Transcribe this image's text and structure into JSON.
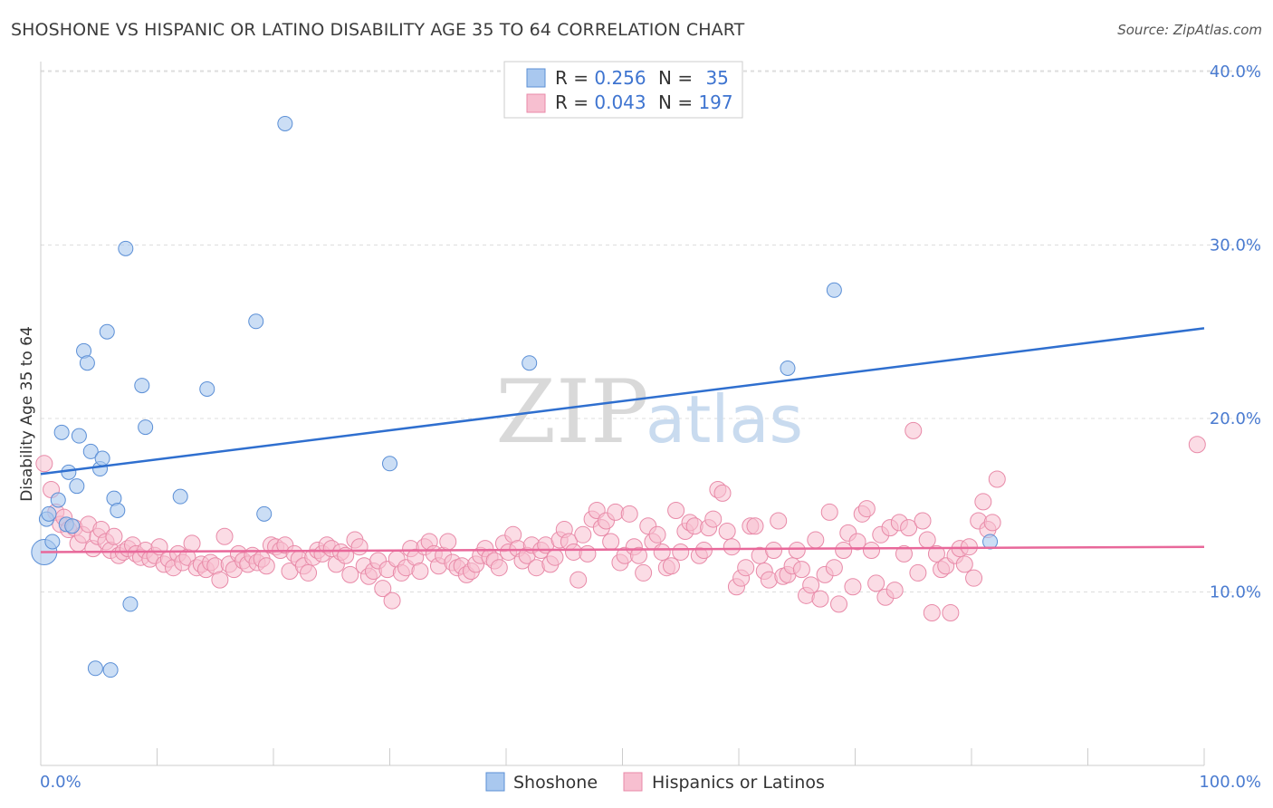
{
  "title": "SHOSHONE VS HISPANIC OR LATINO DISABILITY AGE 35 TO 64 CORRELATION CHART",
  "source": "Source: ZipAtlas.com",
  "watermark": {
    "zip": "ZIP",
    "atlas": "atlas"
  },
  "colors": {
    "shoshone_fill": "#a9c8ef",
    "shoshone_stroke": "#5b8fd6",
    "shoshone_line": "#2f6fcf",
    "hispanic_fill": "#f7bfd0",
    "hispanic_stroke": "#e88aa8",
    "hispanic_line": "#e8689a",
    "accent_text": "#3e74d0"
  },
  "legend": {
    "rows": [
      {
        "r_label": "R = ",
        "r_value": "0.256",
        "n_label": "N = ",
        "n_value": "35"
      },
      {
        "r_label": "R = ",
        "r_value": "0.043",
        "n_label": "N = ",
        "n_value": "197"
      }
    ]
  },
  "chart_data": {
    "type": "scatter",
    "title": "SHOSHONE VS HISPANIC OR LATINO DISABILITY AGE 35 TO 64 CORRELATION CHART",
    "xlabel": "",
    "ylabel": "Disability Age 35 to 64",
    "xlim": [
      0,
      100
    ],
    "ylim": [
      0,
      42
    ],
    "x_tick_labels": [
      "0.0%",
      "100.0%"
    ],
    "y_ticks": [
      10,
      20,
      30,
      40
    ],
    "y_tick_labels": [
      "10.0%",
      "20.0%",
      "30.0%",
      "40.0%"
    ],
    "grid": true,
    "legend_position": "top-center",
    "series": [
      {
        "name": "Shoshone",
        "r": 0.256,
        "n": 35,
        "trend": {
          "x": [
            0,
            100
          ],
          "y": [
            16.8,
            25.2
          ]
        },
        "points": [
          [
            0.3,
            12.3
          ],
          [
            0.5,
            14.2
          ],
          [
            0.7,
            14.5
          ],
          [
            1.0,
            12.9
          ],
          [
            1.5,
            15.3
          ],
          [
            1.8,
            19.2
          ],
          [
            2.2,
            13.9
          ],
          [
            2.4,
            16.9
          ],
          [
            2.7,
            13.8
          ],
          [
            3.1,
            16.1
          ],
          [
            3.3,
            19.0
          ],
          [
            3.7,
            23.9
          ],
          [
            4.0,
            23.2
          ],
          [
            4.3,
            18.1
          ],
          [
            4.7,
            5.6
          ],
          [
            5.1,
            17.1
          ],
          [
            5.3,
            17.7
          ],
          [
            5.7,
            25.0
          ],
          [
            6.0,
            5.5
          ],
          [
            6.3,
            15.4
          ],
          [
            6.6,
            14.7
          ],
          [
            7.3,
            29.8
          ],
          [
            7.7,
            9.3
          ],
          [
            8.7,
            21.9
          ],
          [
            9.0,
            19.5
          ],
          [
            12.0,
            15.5
          ],
          [
            14.3,
            21.7
          ],
          [
            18.5,
            25.6
          ],
          [
            19.2,
            14.5
          ],
          [
            21.0,
            37.0
          ],
          [
            30.0,
            17.4
          ],
          [
            42.0,
            23.2
          ],
          [
            64.2,
            22.9
          ],
          [
            68.2,
            27.4
          ],
          [
            81.6,
            12.9
          ]
        ]
      },
      {
        "name": "Hispanics or Latinos",
        "r": 0.043,
        "n": 197,
        "trend": {
          "x": [
            0,
            100
          ],
          "y": [
            12.3,
            12.6
          ]
        },
        "points": [
          [
            0.3,
            17.4
          ],
          [
            0.9,
            15.9
          ],
          [
            1.3,
            14.6
          ],
          [
            1.7,
            13.9
          ],
          [
            2.0,
            14.3
          ],
          [
            2.4,
            13.6
          ],
          [
            2.9,
            13.7
          ],
          [
            3.2,
            12.8
          ],
          [
            3.6,
            13.3
          ],
          [
            4.1,
            13.9
          ],
          [
            4.5,
            12.5
          ],
          [
            4.9,
            13.2
          ],
          [
            5.2,
            13.6
          ],
          [
            5.6,
            12.9
          ],
          [
            6.0,
            12.4
          ],
          [
            6.3,
            13.2
          ],
          [
            6.7,
            12.1
          ],
          [
            7.1,
            12.3
          ],
          [
            7.5,
            12.5
          ],
          [
            7.9,
            12.7
          ],
          [
            8.2,
            12.2
          ],
          [
            8.6,
            12.0
          ],
          [
            9.0,
            12.4
          ],
          [
            9.4,
            11.9
          ],
          [
            9.8,
            12.1
          ],
          [
            10.2,
            12.6
          ],
          [
            10.6,
            11.6
          ],
          [
            11.0,
            11.9
          ],
          [
            11.4,
            11.4
          ],
          [
            11.8,
            12.2
          ],
          [
            12.2,
            11.7
          ],
          [
            12.6,
            12.0
          ],
          [
            13.0,
            12.8
          ],
          [
            13.4,
            11.4
          ],
          [
            13.8,
            11.6
          ],
          [
            14.2,
            11.3
          ],
          [
            14.6,
            11.7
          ],
          [
            15.0,
            11.5
          ],
          [
            15.4,
            10.7
          ],
          [
            15.8,
            13.2
          ],
          [
            16.2,
            11.6
          ],
          [
            16.6,
            11.3
          ],
          [
            17.0,
            12.2
          ],
          [
            17.4,
            11.8
          ],
          [
            17.8,
            11.6
          ],
          [
            18.2,
            12.1
          ],
          [
            18.6,
            11.7
          ],
          [
            19.0,
            11.9
          ],
          [
            19.4,
            11.5
          ],
          [
            19.8,
            12.7
          ],
          [
            20.2,
            12.6
          ],
          [
            20.6,
            12.4
          ],
          [
            21.0,
            12.7
          ],
          [
            21.4,
            11.2
          ],
          [
            21.8,
            12.2
          ],
          [
            22.2,
            11.9
          ],
          [
            22.6,
            11.5
          ],
          [
            23.0,
            11.1
          ],
          [
            23.4,
            12.0
          ],
          [
            23.8,
            12.4
          ],
          [
            24.2,
            12.2
          ],
          [
            24.6,
            12.7
          ],
          [
            25.0,
            12.5
          ],
          [
            25.4,
            11.6
          ],
          [
            25.8,
            12.3
          ],
          [
            26.2,
            12.1
          ],
          [
            26.6,
            11.0
          ],
          [
            27.0,
            13.0
          ],
          [
            27.4,
            12.6
          ],
          [
            27.8,
            11.5
          ],
          [
            28.2,
            10.9
          ],
          [
            28.6,
            11.2
          ],
          [
            29.0,
            11.8
          ],
          [
            29.4,
            10.2
          ],
          [
            29.8,
            11.3
          ],
          [
            30.2,
            9.5
          ],
          [
            30.6,
            11.9
          ],
          [
            31.0,
            11.1
          ],
          [
            31.4,
            11.4
          ],
          [
            31.8,
            12.5
          ],
          [
            32.2,
            12.0
          ],
          [
            32.6,
            11.2
          ],
          [
            33.0,
            12.6
          ],
          [
            33.4,
            12.9
          ],
          [
            33.8,
            12.2
          ],
          [
            34.2,
            11.5
          ],
          [
            34.6,
            12.1
          ],
          [
            35.0,
            12.9
          ],
          [
            35.4,
            11.7
          ],
          [
            35.8,
            11.4
          ],
          [
            36.2,
            11.5
          ],
          [
            36.6,
            11.0
          ],
          [
            37.0,
            11.2
          ],
          [
            37.4,
            11.6
          ],
          [
            37.8,
            12.1
          ],
          [
            38.2,
            12.5
          ],
          [
            38.6,
            12.0
          ],
          [
            39.0,
            11.8
          ],
          [
            39.4,
            11.4
          ],
          [
            39.8,
            12.8
          ],
          [
            40.2,
            12.3
          ],
          [
            40.6,
            13.3
          ],
          [
            41.0,
            12.5
          ],
          [
            41.4,
            11.8
          ],
          [
            41.8,
            12.1
          ],
          [
            42.2,
            12.7
          ],
          [
            42.6,
            11.4
          ],
          [
            43.0,
            12.4
          ],
          [
            43.4,
            12.7
          ],
          [
            43.8,
            11.6
          ],
          [
            44.2,
            12.0
          ],
          [
            44.6,
            13.0
          ],
          [
            45.0,
            13.6
          ],
          [
            45.4,
            12.9
          ],
          [
            45.8,
            12.3
          ],
          [
            46.2,
            10.7
          ],
          [
            46.6,
            13.3
          ],
          [
            47.0,
            12.2
          ],
          [
            47.4,
            14.2
          ],
          [
            47.8,
            14.7
          ],
          [
            48.2,
            13.7
          ],
          [
            48.6,
            14.1
          ],
          [
            49.0,
            12.9
          ],
          [
            49.4,
            14.6
          ],
          [
            49.8,
            11.7
          ],
          [
            50.2,
            12.1
          ],
          [
            50.6,
            14.5
          ],
          [
            51.0,
            12.6
          ],
          [
            51.4,
            12.1
          ],
          [
            51.8,
            11.1
          ],
          [
            52.2,
            13.8
          ],
          [
            52.6,
            12.9
          ],
          [
            53.0,
            13.3
          ],
          [
            53.4,
            12.3
          ],
          [
            53.8,
            11.4
          ],
          [
            54.2,
            11.5
          ],
          [
            54.6,
            14.7
          ],
          [
            55.0,
            12.3
          ],
          [
            55.4,
            13.5
          ],
          [
            55.8,
            14.0
          ],
          [
            56.2,
            13.8
          ],
          [
            56.6,
            12.1
          ],
          [
            57.0,
            12.4
          ],
          [
            57.4,
            13.7
          ],
          [
            57.8,
            14.2
          ],
          [
            58.2,
            15.9
          ],
          [
            58.6,
            15.7
          ],
          [
            59.0,
            13.5
          ],
          [
            59.4,
            12.6
          ],
          [
            59.8,
            10.3
          ],
          [
            60.2,
            10.8
          ],
          [
            60.6,
            11.4
          ],
          [
            61.0,
            13.8
          ],
          [
            61.4,
            13.8
          ],
          [
            61.8,
            12.1
          ],
          [
            62.2,
            11.2
          ],
          [
            62.6,
            10.7
          ],
          [
            63.0,
            12.4
          ],
          [
            63.4,
            14.1
          ],
          [
            63.8,
            10.9
          ],
          [
            64.2,
            11.0
          ],
          [
            64.6,
            11.5
          ],
          [
            65.0,
            12.4
          ],
          [
            65.4,
            11.3
          ],
          [
            65.8,
            9.8
          ],
          [
            66.2,
            10.4
          ],
          [
            66.6,
            13.0
          ],
          [
            67.0,
            9.6
          ],
          [
            67.4,
            11.0
          ],
          [
            67.8,
            14.6
          ],
          [
            68.2,
            11.4
          ],
          [
            68.6,
            9.3
          ],
          [
            69.0,
            12.4
          ],
          [
            69.4,
            13.4
          ],
          [
            69.8,
            10.3
          ],
          [
            70.2,
            12.9
          ],
          [
            70.6,
            14.5
          ],
          [
            71.0,
            14.8
          ],
          [
            71.4,
            12.4
          ],
          [
            71.8,
            10.5
          ],
          [
            72.2,
            13.3
          ],
          [
            72.6,
            9.7
          ],
          [
            73.0,
            13.7
          ],
          [
            73.4,
            10.1
          ],
          [
            73.8,
            14.0
          ],
          [
            74.2,
            12.2
          ],
          [
            74.6,
            13.7
          ],
          [
            75.0,
            19.3
          ],
          [
            75.4,
            11.1
          ],
          [
            75.8,
            14.1
          ],
          [
            76.2,
            13.0
          ],
          [
            76.6,
            8.8
          ],
          [
            77.0,
            12.2
          ],
          [
            77.4,
            11.3
          ],
          [
            77.8,
            11.5
          ],
          [
            78.2,
            8.8
          ],
          [
            78.6,
            12.1
          ],
          [
            79.0,
            12.5
          ],
          [
            79.4,
            11.6
          ],
          [
            79.8,
            12.6
          ],
          [
            80.2,
            10.8
          ],
          [
            80.6,
            14.1
          ],
          [
            81.0,
            15.2
          ],
          [
            81.4,
            13.6
          ],
          [
            81.8,
            14.0
          ],
          [
            82.2,
            16.5
          ],
          [
            99.4,
            18.5
          ]
        ]
      }
    ]
  },
  "bottom_legend": {
    "items": [
      "Shoshone",
      "Hispanics or Latinos"
    ]
  }
}
